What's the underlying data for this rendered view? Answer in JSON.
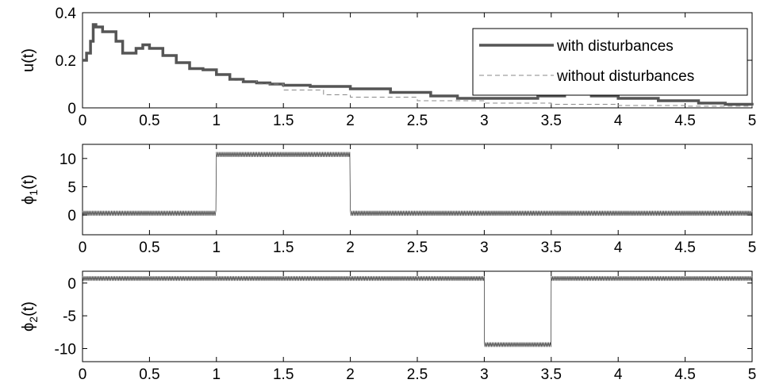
{
  "chart_data": [
    {
      "type": "line",
      "ylabel": "u(t)",
      "xlim": [
        0,
        5
      ],
      "ylim": [
        0,
        0.4
      ],
      "xticks": [
        "0",
        "0.5",
        "1",
        "1.5",
        "2",
        "2.5",
        "3",
        "3.5",
        "4",
        "4.5",
        "5"
      ],
      "yticks": [
        "0",
        "0.2",
        "0.4"
      ],
      "grid": false,
      "legend_position": "top-right",
      "series": [
        {
          "name": "with disturbances",
          "style": "solid-thick",
          "color": "#555555",
          "x": [
            0,
            0.03,
            0.06,
            0.08,
            0.1,
            0.15,
            0.2,
            0.25,
            0.3,
            0.35,
            0.4,
            0.45,
            0.5,
            0.6,
            0.7,
            0.8,
            0.9,
            1.0,
            1.1,
            1.2,
            1.3,
            1.4,
            1.5,
            1.7,
            2.0,
            2.3,
            2.6,
            2.8,
            3.0,
            3.2,
            3.4,
            3.6,
            3.8,
            4.0,
            4.3,
            4.6,
            4.8,
            5.0
          ],
          "y": [
            0.2,
            0.23,
            0.28,
            0.35,
            0.34,
            0.32,
            0.32,
            0.28,
            0.23,
            0.23,
            0.25,
            0.265,
            0.25,
            0.22,
            0.19,
            0.165,
            0.16,
            0.14,
            0.12,
            0.11,
            0.105,
            0.1,
            0.095,
            0.09,
            0.08,
            0.065,
            0.05,
            0.04,
            0.04,
            0.04,
            0.05,
            0.06,
            0.05,
            0.04,
            0.03,
            0.02,
            0.015,
            0.01
          ]
        },
        {
          "name": "without disturbances",
          "style": "dashed-thin",
          "color": "#888888",
          "x": [
            1.1,
            1.3,
            1.5,
            1.8,
            2.0,
            2.5,
            3.0,
            3.5,
            4.0,
            4.5,
            5.0
          ],
          "y": [
            0.115,
            0.1,
            0.075,
            0.055,
            0.045,
            0.03,
            0.02,
            0.015,
            0.01,
            0.007,
            0.005
          ]
        }
      ]
    },
    {
      "type": "line",
      "ylabel_base": "ϕ",
      "ylabel_sub": "1",
      "ylabel_tail": "(t)",
      "xlim": [
        0,
        5
      ],
      "ylim": [
        -3.5,
        12.5
      ],
      "xticks": [
        "0",
        "0.5",
        "1",
        "1.5",
        "2",
        "2.5",
        "3",
        "3.5",
        "4",
        "4.5",
        "5"
      ],
      "yticks": [
        "0",
        "5",
        "10"
      ],
      "grid": false,
      "series": [
        {
          "color": "#444444",
          "segments": [
            {
              "x0": 0,
              "x1": 1,
              "level": 0.3
            },
            {
              "x0": 1,
              "x1": 2,
              "level": 10.7
            },
            {
              "x0": 2,
              "x1": 5,
              "level": 0.3
            }
          ],
          "oscillation_amplitude": 0.45
        }
      ]
    },
    {
      "type": "line",
      "ylabel_base": "ϕ",
      "ylabel_sub": "2",
      "ylabel_tail": "(t)",
      "xlim": [
        0,
        5
      ],
      "ylim": [
        -12,
        1.8
      ],
      "xticks": [
        "0",
        "0.5",
        "1",
        "1.5",
        "2",
        "2.5",
        "3",
        "3.5",
        "4",
        "4.5",
        "5"
      ],
      "yticks": [
        "0",
        "-5",
        "-10"
      ],
      "grid": false,
      "series": [
        {
          "color": "#444444",
          "segments": [
            {
              "x0": 0,
              "x1": 3,
              "level": 0.7
            },
            {
              "x0": 3,
              "x1": 3.5,
              "level": -9.4
            },
            {
              "x0": 3.5,
              "x1": 5,
              "level": 0.7
            }
          ],
          "oscillation_amplitude": 0.35
        }
      ]
    }
  ]
}
